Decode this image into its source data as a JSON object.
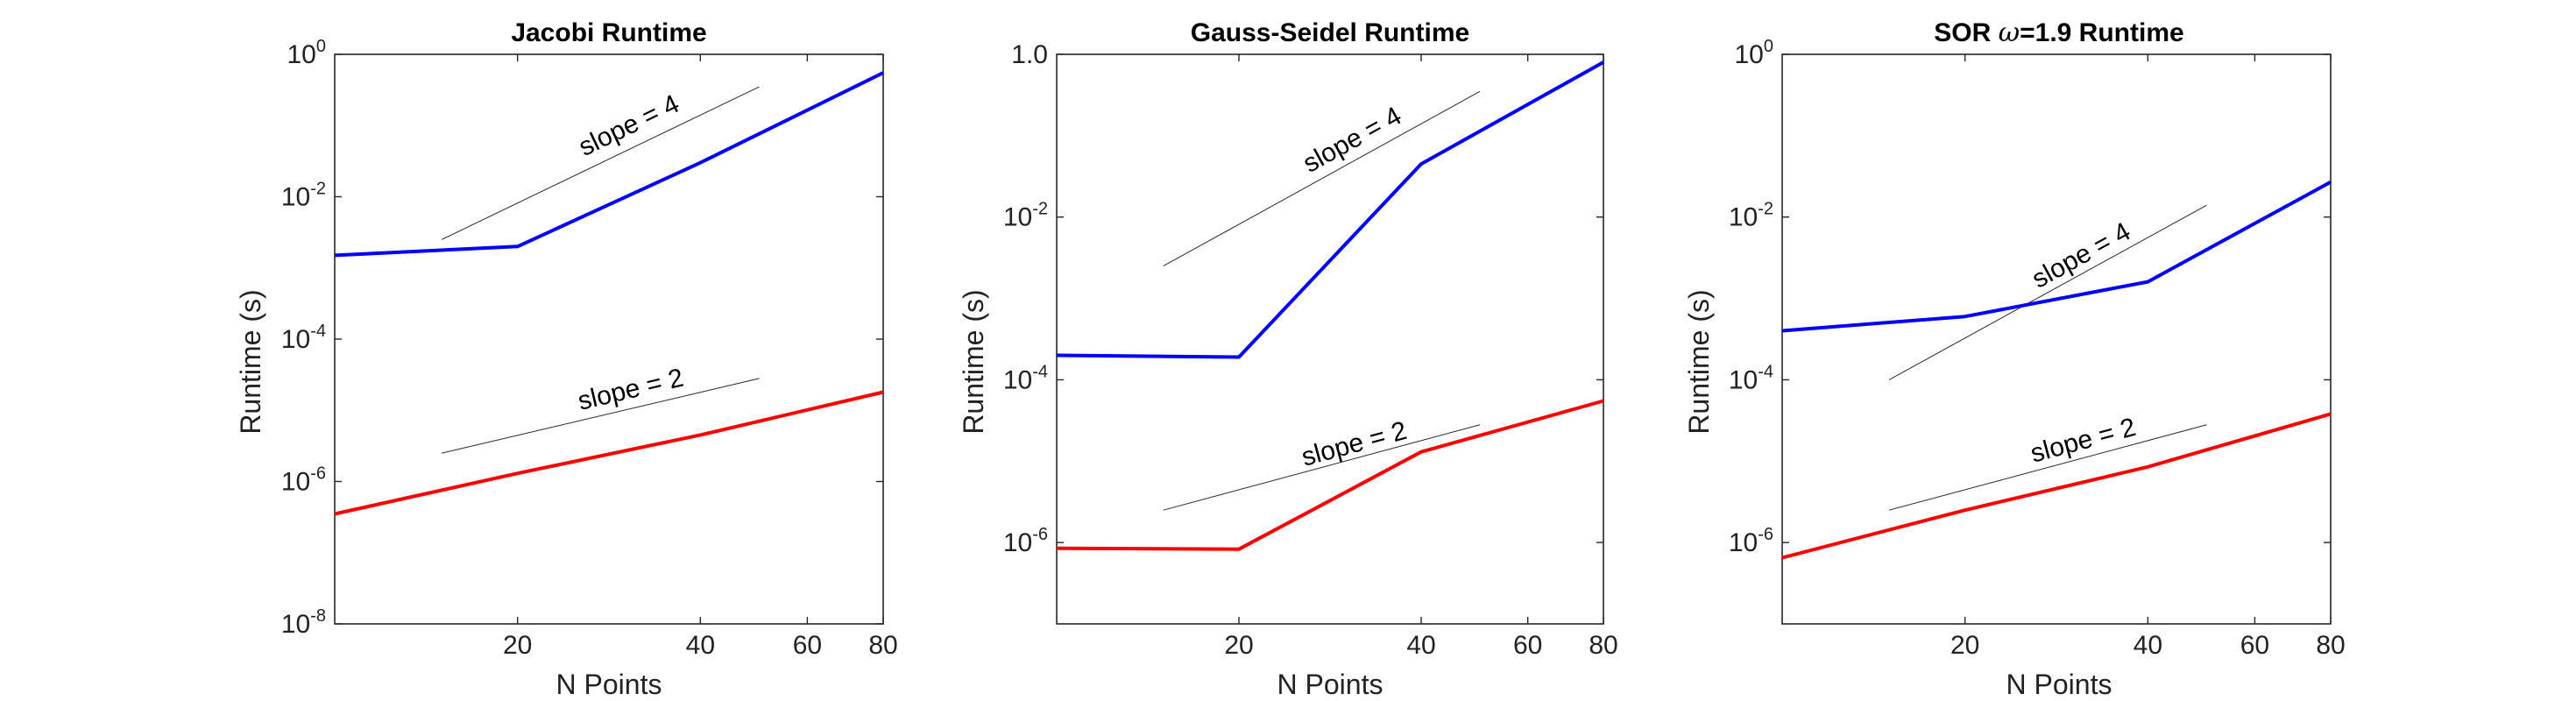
{
  "chart_data": [
    {
      "type": "line",
      "title": "Jacobi Runtime",
      "title_symbol": "",
      "xlabel": "N Points",
      "ylabel": "Runtime (s)",
      "xscale": "log",
      "yscale": "log",
      "xlim": [
        10,
        80
      ],
      "ylim": [
        1e-08,
        1
      ],
      "xticks": [
        20,
        40,
        60,
        80
      ],
      "yticks": [
        -8,
        -6,
        -4,
        -2,
        0
      ],
      "ytick_format": "power",
      "grid": false,
      "box": true,
      "series": [
        {
          "color": "#0000ff",
          "x": [
            10,
            20,
            40,
            80
          ],
          "y": [
            0.0015,
            0.002,
            0.03,
            0.55
          ]
        },
        {
          "color": "#ff0000",
          "x": [
            10,
            20,
            40,
            80
          ],
          "y": [
            3.5e-07,
            1.3e-06,
            4.5e-06,
            1.8e-05
          ]
        }
      ],
      "reference_lines": [
        {
          "label": "slope = 4",
          "color": "#000000",
          "x": [
            15,
            50
          ],
          "y": [
            0.0025,
            0.35
          ]
        },
        {
          "label": "slope = 2",
          "color": "#000000",
          "x": [
            15,
            50
          ],
          "y": [
            2.5e-06,
            2.8e-05
          ]
        }
      ]
    },
    {
      "type": "line",
      "title": "Gauss-Seidel Runtime",
      "title_symbol": "",
      "xlabel": "N Points",
      "ylabel": "Runtime (s)",
      "xscale": "log",
      "yscale": "log",
      "xlim": [
        10,
        80
      ],
      "ylim": [
        1e-07,
        1
      ],
      "xticks": [
        20,
        40,
        60,
        80
      ],
      "yticks": [
        -6,
        -4,
        -2,
        0
      ],
      "ytick_format": "power-zero-plain",
      "grid": false,
      "box": true,
      "series": [
        {
          "color": "#0000ff",
          "x": [
            10,
            20,
            40,
            80
          ],
          "y": [
            0.0002,
            0.00019,
            0.045,
            0.8
          ]
        },
        {
          "color": "#ff0000",
          "x": [
            10,
            20,
            40,
            80
          ],
          "y": [
            8.5e-07,
            8.3e-07,
            1.3e-05,
            5.5e-05
          ]
        }
      ],
      "reference_lines": [
        {
          "label": "slope = 4",
          "color": "#000000",
          "x": [
            15,
            50
          ],
          "y": [
            0.0025,
            0.35
          ]
        },
        {
          "label": "slope = 2",
          "color": "#000000",
          "x": [
            15,
            50
          ],
          "y": [
            2.5e-06,
            2.8e-05
          ]
        }
      ]
    },
    {
      "type": "line",
      "title": "SOR ",
      "title_symbol": "ω",
      "title_suffix": "=1.9 Runtime",
      "xlabel": "N Points",
      "ylabel": "Runtime (s)",
      "xscale": "log",
      "yscale": "log",
      "xlim": [
        10,
        80
      ],
      "ylim": [
        1e-07,
        1
      ],
      "xticks": [
        20,
        40,
        60,
        80
      ],
      "yticks": [
        -6,
        -4,
        -2,
        0
      ],
      "ytick_format": "power",
      "grid": false,
      "box": true,
      "series": [
        {
          "color": "#0000ff",
          "x": [
            10,
            20,
            40,
            80
          ],
          "y": [
            0.0004,
            0.0006,
            0.0016,
            0.027
          ]
        },
        {
          "color": "#ff0000",
          "x": [
            10,
            20,
            40,
            80
          ],
          "y": [
            6.5e-07,
            2.5e-06,
            8.5e-06,
            3.8e-05
          ]
        }
      ],
      "reference_lines": [
        {
          "label": "slope = 4",
          "color": "#000000",
          "x": [
            15,
            50
          ],
          "y": [
            0.0001,
            0.014
          ]
        },
        {
          "label": "slope = 2",
          "color": "#000000",
          "x": [
            15,
            50
          ],
          "y": [
            2.5e-06,
            2.8e-05
          ]
        }
      ]
    }
  ]
}
